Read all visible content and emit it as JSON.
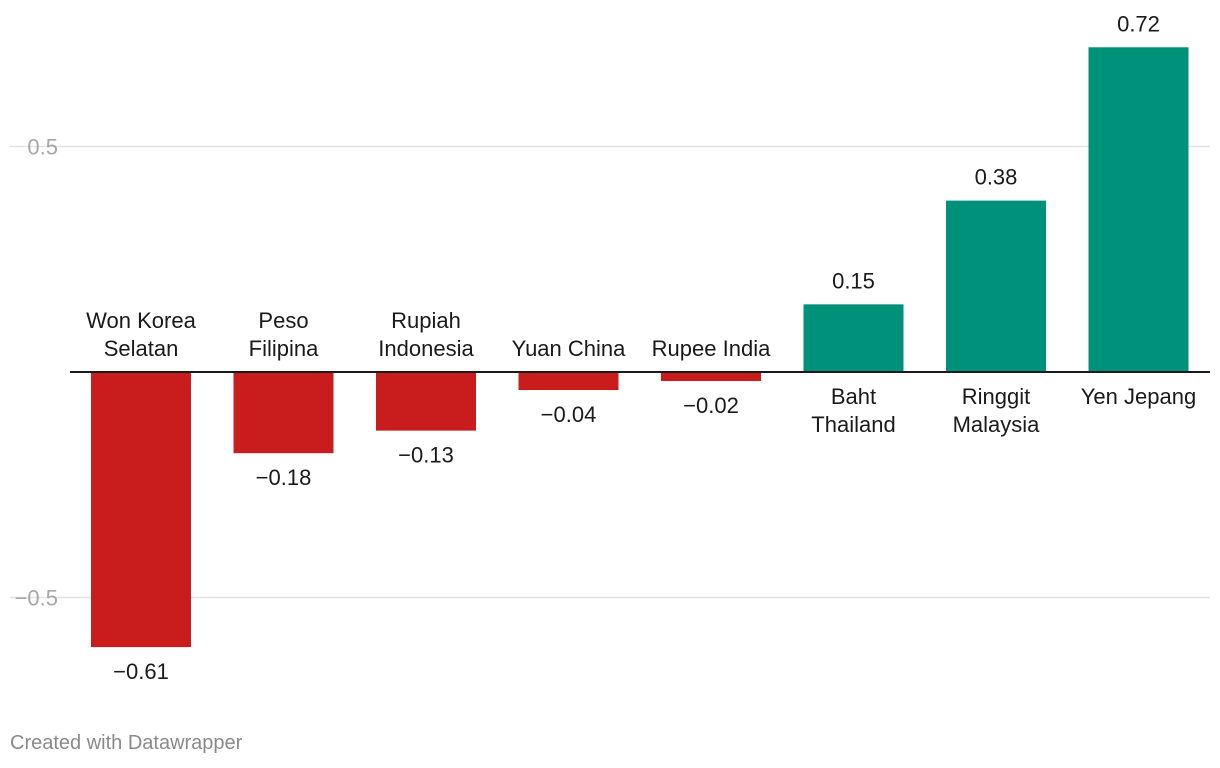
{
  "chart_data": {
    "type": "bar",
    "categories": [
      [
        "Won Korea",
        "Selatan"
      ],
      [
        "Peso",
        "Filipina"
      ],
      [
        "Rupiah",
        "Indonesia"
      ],
      [
        "Yuan China"
      ],
      [
        "Rupee India"
      ],
      [
        "Baht",
        "Thailand"
      ],
      [
        "Ringgit",
        "Malaysia"
      ],
      [
        "Yen Jepang"
      ]
    ],
    "values": [
      -0.61,
      -0.18,
      -0.13,
      -0.04,
      -0.02,
      0.15,
      0.38,
      0.72
    ],
    "value_labels": [
      "−0.61",
      "−0.18",
      "−0.13",
      "−0.04",
      "−0.02",
      "0.15",
      "0.38",
      "0.72"
    ],
    "yticks": [
      {
        "value": 0.5,
        "label": "0.5"
      },
      {
        "value": -0.5,
        "label": "−0.5"
      }
    ],
    "ylim": [
      -0.8,
      0.82
    ],
    "colors": {
      "positive": "#00917a",
      "negative": "#c91c1c",
      "grid": "#e3e3e3",
      "axis": "#1a1a1a"
    },
    "title": "",
    "xlabel": "",
    "ylabel": ""
  },
  "footer": {
    "credit": "Created with Datawrapper"
  }
}
